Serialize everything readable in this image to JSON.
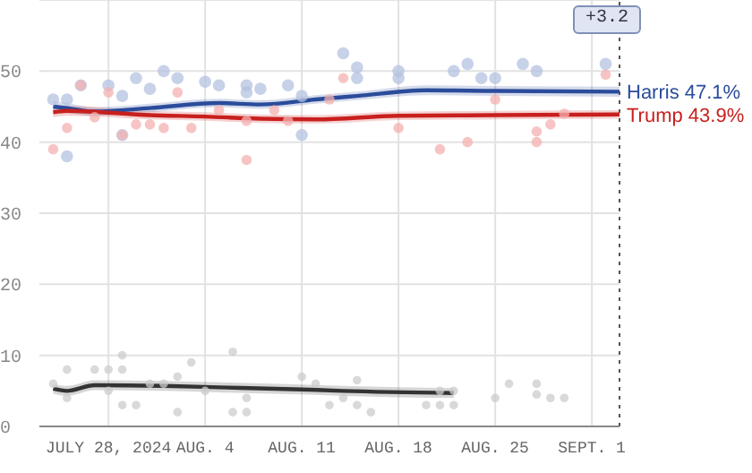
{
  "chart_data": {
    "type": "line",
    "annotations": [
      "+3.2"
    ],
    "xlim": [
      "2024-07-23",
      "2024-09-03"
    ],
    "xticks": [
      {
        "value": "2024-07-28",
        "label": "JULY 28, 2024"
      },
      {
        "value": "2024-08-04",
        "label": "AUG. 4"
      },
      {
        "value": "2024-08-11",
        "label": "AUG. 11"
      },
      {
        "value": "2024-08-18",
        "label": "AUG. 18"
      },
      {
        "value": "2024-08-25",
        "label": "AUG. 25"
      },
      {
        "value": "2024-09-01",
        "label": "SEPT. 1"
      }
    ],
    "ylim": [
      0,
      60
    ],
    "yticks": [
      0,
      10,
      20,
      30,
      40,
      50,
      {
        "value": 60,
        "label": null
      }
    ],
    "grid": true,
    "legend": false,
    "ref_lines": [
      {
        "axis": "x",
        "value": "2024-09-03",
        "line_style": "dotted",
        "color": "#555555"
      }
    ],
    "series": [
      {
        "type": "scatter",
        "marker": "circle",
        "color": "#b4c2e0",
        "x": [
          "2024-07-24",
          "2024-07-25",
          "2024-07-26",
          "2024-07-28",
          "2024-07-29",
          "2024-07-30",
          "2024-07-31",
          "2024-08-01",
          "2024-08-02",
          "2024-08-04",
          "2024-08-05",
          "2024-08-07",
          "2024-08-07",
          "2024-08-08",
          "2024-08-10",
          "2024-08-11",
          "2024-08-14",
          "2024-08-15",
          "2024-08-15",
          "2024-08-18",
          "2024-08-18",
          "2024-08-22",
          "2024-08-23",
          "2024-08-24",
          "2024-08-25",
          "2024-08-27",
          "2024-08-28",
          "2024-09-02",
          "2024-07-25",
          "2024-07-29",
          "2024-08-11"
        ],
        "values": [
          46,
          46,
          48,
          48,
          46.5,
          49,
          47.5,
          50,
          49,
          48.5,
          48,
          48,
          47,
          47.5,
          48,
          46.5,
          52.5,
          49,
          50.5,
          50,
          49,
          50,
          51,
          49,
          49,
          51,
          50,
          51,
          38,
          41,
          41
        ]
      },
      {
        "type": "scatter",
        "marker": "circle",
        "color": "#f4b0b0",
        "x": [
          "2024-07-24",
          "2024-07-25",
          "2024-07-26",
          "2024-07-27",
          "2024-07-28",
          "2024-07-29",
          "2024-07-30",
          "2024-07-31",
          "2024-08-01",
          "2024-08-02",
          "2024-08-03",
          "2024-08-05",
          "2024-08-07",
          "2024-08-07",
          "2024-08-09",
          "2024-08-10",
          "2024-08-13",
          "2024-08-14",
          "2024-08-18",
          "2024-08-21",
          "2024-08-23",
          "2024-08-25",
          "2024-08-28",
          "2024-08-28",
          "2024-08-29",
          "2024-08-30",
          "2024-09-02"
        ],
        "values": [
          39,
          42,
          48,
          43.5,
          47,
          41,
          42.5,
          42.5,
          42,
          47,
          42,
          44.5,
          37.5,
          43,
          44.5,
          43,
          46,
          49,
          42,
          39,
          40,
          46,
          41.5,
          40,
          42.5,
          44,
          49.5
        ]
      },
      {
        "type": "scatter",
        "marker": "circle",
        "color": "#cccccc",
        "x": [
          "2024-07-24",
          "2024-07-25",
          "2024-07-25",
          "2024-07-27",
          "2024-07-28",
          "2024-07-28",
          "2024-07-29",
          "2024-07-29",
          "2024-07-29",
          "2024-07-30",
          "2024-07-31",
          "2024-08-01",
          "2024-08-02",
          "2024-08-02",
          "2024-08-03",
          "2024-08-04",
          "2024-08-06",
          "2024-08-06",
          "2024-08-07",
          "2024-08-07",
          "2024-08-11",
          "2024-08-12",
          "2024-08-13",
          "2024-08-14",
          "2024-08-15",
          "2024-08-15",
          "2024-08-16",
          "2024-08-20",
          "2024-08-21",
          "2024-08-21",
          "2024-08-22",
          "2024-08-22",
          "2024-08-25",
          "2024-08-26",
          "2024-08-28",
          "2024-08-28",
          "2024-08-29",
          "2024-08-30"
        ],
        "values": [
          6,
          4,
          8,
          8,
          8,
          5,
          10,
          8,
          3,
          3,
          6,
          6,
          7,
          2,
          9,
          5,
          10.5,
          2,
          4,
          2,
          7,
          6,
          3,
          4,
          6.5,
          3,
          2,
          3,
          3,
          5,
          3,
          5,
          4,
          6,
          6,
          4.5,
          4,
          4
        ]
      },
      {
        "type": "line",
        "marker": "none",
        "name": "Harris 47.1%",
        "color": "#2b4c9b",
        "x": [
          "2024-07-24",
          "2024-07-25",
          "2024-07-27",
          "2024-07-31",
          "2024-08-05",
          "2024-08-08",
          "2024-08-12",
          "2024-08-15",
          "2024-08-20",
          "2024-08-25",
          "2024-09-03"
        ],
        "values": [
          45,
          44.8,
          44.3,
          44.8,
          45.5,
          45.3,
          46,
          46.5,
          47.3,
          47.2,
          47.1
        ],
        "lower": [
          44.2,
          44.1,
          43.7,
          44.2,
          44.9,
          44.7,
          45.4,
          45.9,
          46.6,
          46.5,
          46.4
        ],
        "upper": [
          45.8,
          45.5,
          44.9,
          45.4,
          46.1,
          45.9,
          46.6,
          47.1,
          48,
          47.9,
          47.8
        ]
      },
      {
        "type": "line",
        "marker": "none",
        "name": "Trump 43.9%",
        "color": "#c8201e",
        "x": [
          "2024-07-24",
          "2024-07-25",
          "2024-07-31",
          "2024-08-04",
          "2024-08-08",
          "2024-08-12",
          "2024-08-18",
          "2024-08-25",
          "2024-09-03"
        ],
        "values": [
          44.2,
          44.4,
          43.8,
          43.6,
          43.3,
          43.2,
          43.7,
          43.8,
          43.9
        ],
        "lower": [
          43.5,
          43.7,
          43.2,
          43,
          42.7,
          42.6,
          43.1,
          43.2,
          43.3
        ],
        "upper": [
          44.9,
          45.1,
          44.4,
          44.2,
          43.9,
          43.8,
          44.3,
          44.4,
          44.5
        ]
      },
      {
        "type": "line",
        "marker": "none",
        "color": "#333333",
        "x": [
          "2024-07-24",
          "2024-07-25",
          "2024-07-27",
          "2024-08-01",
          "2024-08-05",
          "2024-08-11",
          "2024-08-14",
          "2024-08-22"
        ],
        "values": [
          5.3,
          5,
          5.8,
          5.7,
          5.5,
          5.2,
          5,
          4.7
        ],
        "lower": [
          4.6,
          4.3,
          5.1,
          5,
          4.8,
          4.5,
          4.3,
          4
        ],
        "upper": [
          6,
          5.7,
          6.5,
          6.4,
          6.2,
          5.9,
          5.7,
          5.4
        ]
      }
    ]
  }
}
